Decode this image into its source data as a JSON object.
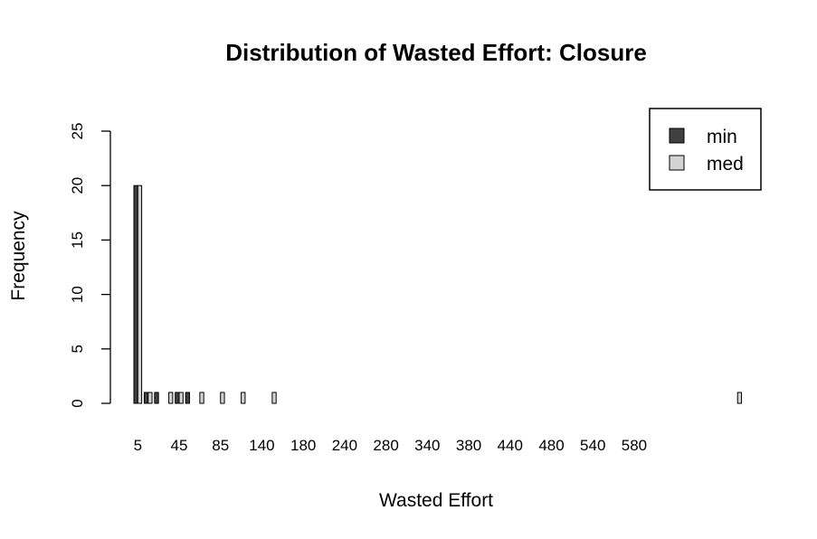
{
  "chart_data": {
    "type": "bar",
    "title": "Distribution of Wasted Effort: Closure",
    "xlabel": "Wasted Effort",
    "ylabel": "Frequency",
    "ylim": [
      0,
      25
    ],
    "yticks": [
      0,
      5,
      10,
      15,
      20,
      25
    ],
    "x_tick_labels": [
      "5",
      "45",
      "85",
      "140",
      "180",
      "240",
      "280",
      "340",
      "380",
      "440",
      "480",
      "540",
      "580"
    ],
    "x_tick_label_indices": [
      0,
      4,
      8,
      12,
      16,
      20,
      24,
      28,
      32,
      36,
      40,
      44,
      48
    ],
    "categories": [
      "5",
      "15",
      "25",
      "35",
      "45",
      "55",
      "65",
      "75",
      "85",
      "95",
      "105",
      "115",
      "125",
      "135",
      "140",
      "150",
      "160",
      "170",
      "180",
      "190",
      "200",
      "210",
      "220",
      "230",
      "240",
      "250",
      "260",
      "270",
      "280",
      "290",
      "300",
      "310",
      "320",
      "330",
      "340",
      "350",
      "360",
      "370",
      "380",
      "390",
      "400",
      "410",
      "420",
      "430",
      "440",
      "450",
      "460",
      "470",
      "480",
      "490",
      "500",
      "510",
      "520",
      "530",
      "540",
      "550",
      "560",
      "570",
      "580"
    ],
    "series": [
      {
        "name": "min",
        "color": "#404040",
        "values": [
          20,
          1,
          1,
          0,
          1,
          1,
          0,
          0,
          0,
          0,
          0,
          0,
          0,
          0,
          0,
          0,
          0,
          0,
          0,
          0,
          0,
          0,
          0,
          0,
          0,
          0,
          0,
          0,
          0,
          0,
          0,
          0,
          0,
          0,
          0,
          0,
          0,
          0,
          0,
          0,
          0,
          0,
          0,
          0,
          0,
          0,
          0,
          0,
          0,
          0,
          0,
          0,
          0,
          0,
          0,
          0,
          0,
          0,
          0
        ]
      },
      {
        "name": "med",
        "color": "#d3d3d3",
        "values": [
          20,
          1,
          0,
          1,
          1,
          0,
          1,
          0,
          1,
          0,
          1,
          0,
          0,
          1,
          0,
          0,
          0,
          0,
          0,
          0,
          0,
          0,
          0,
          0,
          0,
          0,
          0,
          0,
          0,
          0,
          0,
          0,
          0,
          0,
          0,
          0,
          0,
          0,
          0,
          0,
          0,
          0,
          0,
          0,
          0,
          0,
          0,
          0,
          0,
          0,
          0,
          0,
          0,
          0,
          0,
          0,
          0,
          0,
          1
        ]
      }
    ],
    "legend_position": "top-right",
    "grid": false
  }
}
